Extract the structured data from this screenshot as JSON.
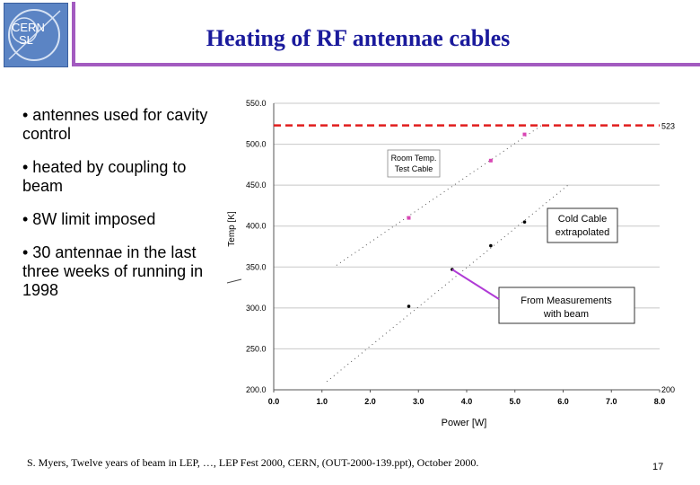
{
  "header": {
    "logo_line1": "CERN",
    "logo_line2": "SL",
    "title": "Heating of RF antennae cables"
  },
  "bullets": [
    "• antennes used for cavity control",
    "• heated by coupling to beam",
    "• 8W limit imposed",
    "• 30 antennae in the last three weeks of running in 1998"
  ],
  "footer": {
    "citation": "S. Myers, Twelve years of beam in LEP, …, LEP Fest 2000, CERN, (OUT-2000-139.ppt), October 2000.",
    "page_number": "17"
  },
  "colors": {
    "accent": "#a35bc0",
    "title": "#1a1a9c",
    "limit_line": "#e11d1d",
    "room_temp": "#d946b4",
    "annotation_line": "#b03bd6"
  },
  "chart_data": {
    "type": "scatter",
    "xlabel": "Power [W]",
    "ylabel": "Temp [K]",
    "xlim": [
      0,
      8
    ],
    "ylim": [
      200,
      550
    ],
    "x_ticks": [
      "0.0",
      "1.0",
      "2.0",
      "3.0",
      "4.0",
      "5.0",
      "6.0",
      "7.0",
      "8.0"
    ],
    "y_ticks": [
      "200.0",
      "250.0",
      "300.0",
      "350.0",
      "400.0",
      "450.0",
      "500.0",
      "550.0"
    ],
    "grid": "horizontal",
    "limit_line": {
      "y": 523,
      "label": "523"
    },
    "right_labels": [
      {
        "y": 200,
        "text": "200"
      }
    ],
    "series": [
      {
        "name": "Room Temp. Test Cable",
        "color": "#d946b4",
        "marker": "square",
        "points": [
          [
            2.8,
            410
          ],
          [
            4.5,
            480
          ],
          [
            5.2,
            512
          ]
        ],
        "fit": [
          [
            1.3,
            352
          ],
          [
            5.6,
            525
          ]
        ]
      },
      {
        "name": "",
        "color": "#000000",
        "marker": "dot",
        "points": [
          [
            2.8,
            302
          ],
          [
            3.7,
            347
          ],
          [
            4.5,
            376
          ],
          [
            5.2,
            405
          ]
        ],
        "fit": [
          [
            1.1,
            210
          ],
          [
            6.1,
            450
          ]
        ]
      }
    ],
    "annotations": [
      {
        "text": "Room Temp. Test Cable",
        "lines": [
          "Room Temp.",
          "Test Cable"
        ]
      },
      {
        "text": "Cold Cable extrapolated",
        "lines": [
          "Cold Cable",
          "extrapolated"
        ]
      },
      {
        "text": "From Measurements with beam",
        "lines": [
          "From Measurements",
          "with beam"
        ]
      }
    ]
  }
}
